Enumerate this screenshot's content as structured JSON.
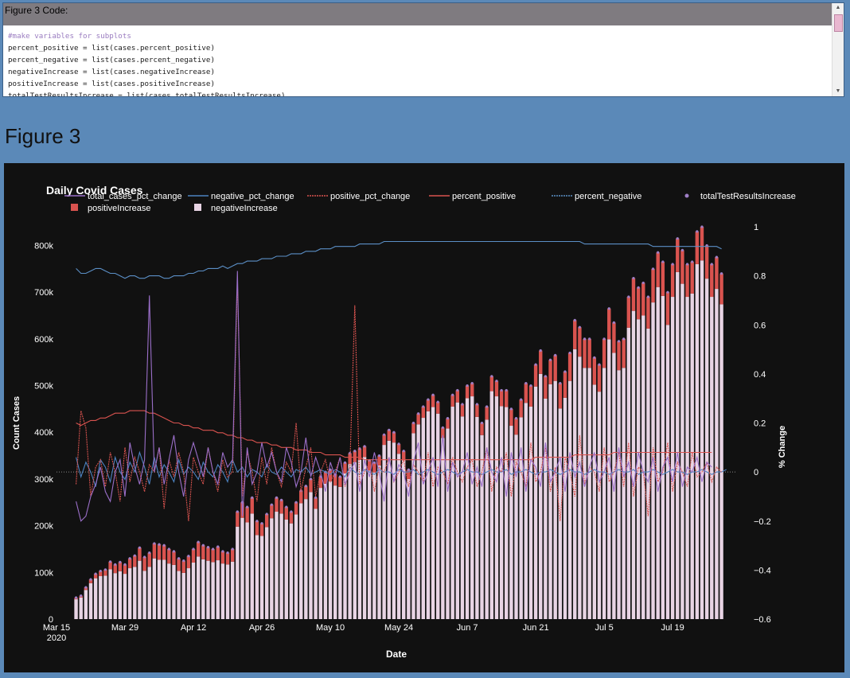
{
  "code_panel": {
    "title": "Figure 3 Code:",
    "lines": [
      {
        "text": "#make variables for subplots",
        "comment": true
      },
      {
        "text": "percent_positive = list(cases.percent_positive)",
        "comment": false
      },
      {
        "text": "percent_negative = list(cases.percent_negative)",
        "comment": false
      },
      {
        "text": "negativeIncrease = list(cases.negativeIncrease)",
        "comment": false
      },
      {
        "text": "positiveIncrease = list(cases.positiveIncrease)",
        "comment": false
      },
      {
        "text": "totalTestResultsIncrease = list(cases.totalTestResultsIncrease)",
        "comment": false
      }
    ],
    "scroll_up_icon": "▲",
    "scroll_down_icon": "▼"
  },
  "figure_title": "Figure 3",
  "colors": {
    "background": "#111111",
    "negativeIncrease": "#e8d4e4",
    "positiveIncrease": "#d9534f",
    "totalTestResultsIncrease": "#9f7fc6",
    "total_cases_pct_change": "#9b6fc9",
    "negative_pct_change": "#4c82c0",
    "positive_pct_change": "#d9534f",
    "percent_positive": "#d9534f",
    "percent_negative": "#5b8fc6"
  },
  "chart_data": {
    "type": "bar",
    "title": "Daily Covid Cases",
    "xlabel": "Date",
    "ylabel": "Count Cases",
    "y2label": "% Change",
    "ylim": [
      0,
      840000
    ],
    "y2lim": [
      -0.6,
      1.0
    ],
    "x_ticks": [
      "Mar 15\n2020",
      "Mar 29",
      "Apr 12",
      "Apr 26",
      "May 10",
      "May 24",
      "Jun 7",
      "Jun 21",
      "Jul 5",
      "Jul 19"
    ],
    "y_ticks": [
      "0",
      "100k",
      "200k",
      "300k",
      "400k",
      "500k",
      "600k",
      "700k",
      "800k"
    ],
    "y2_ticks": [
      "1",
      "0.8",
      "0.6",
      "0.4",
      "0.2",
      "0",
      "−0.2",
      "−0.4",
      "−0.6"
    ],
    "start_date": "2020-03-19",
    "legend": {
      "placement": "top",
      "entries": [
        {
          "name": "total_cases_pct_change",
          "symbol": "line"
        },
        {
          "name": "negative_pct_change",
          "symbol": "line"
        },
        {
          "name": "positive_pct_change",
          "symbol": "dotted-line"
        },
        {
          "name": "percent_positive",
          "symbol": "line"
        },
        {
          "name": "percent_negative",
          "symbol": "dotted-line"
        },
        {
          "name": "totalTestResultsIncrease",
          "symbol": "marker"
        },
        {
          "name": "positiveIncrease",
          "symbol": "bar"
        },
        {
          "name": "negativeIncrease",
          "symbol": "bar"
        }
      ]
    },
    "bars": {
      "totalTestResultsIncrease": [
        46000,
        50000,
        68000,
        85000,
        97000,
        103000,
        106000,
        123000,
        117000,
        122000,
        117000,
        130000,
        136000,
        153000,
        133000,
        142000,
        162000,
        160000,
        158000,
        150000,
        145000,
        130000,
        125000,
        135000,
        150000,
        165000,
        158000,
        154000,
        150000,
        155000,
        145000,
        142000,
        150000,
        230000,
        250000,
        240000,
        260000,
        210000,
        205000,
        225000,
        245000,
        260000,
        255000,
        240000,
        230000,
        250000,
        275000,
        285000,
        300000,
        260000,
        305000,
        315000,
        320000,
        310000,
        305000,
        335000,
        355000,
        360000,
        365000,
        370000,
        340000,
        335000,
        350000,
        395000,
        405000,
        400000,
        375000,
        360000,
        320000,
        420000,
        440000,
        455000,
        470000,
        480000,
        465000,
        410000,
        430000,
        480000,
        490000,
        460000,
        500000,
        505000,
        460000,
        420000,
        455000,
        520000,
        510000,
        490000,
        490000,
        450000,
        430000,
        470000,
        505000,
        500000,
        545000,
        575000,
        520000,
        555000,
        565000,
        505000,
        530000,
        570000,
        640000,
        625000,
        600000,
        600000,
        560000,
        545000,
        600000,
        665000,
        635000,
        595000,
        600000,
        690000,
        730000,
        710000,
        720000,
        690000,
        750000,
        785000,
        765000,
        700000,
        760000,
        815000,
        790000,
        760000,
        765000,
        830000,
        840000,
        800000,
        760000,
        775000,
        740000
      ],
      "positiveIncrease": [
        3500,
        4000,
        5500,
        8000,
        9500,
        11000,
        13000,
        16500,
        18500,
        19500,
        20000,
        21000,
        24000,
        28000,
        29500,
        30000,
        32000,
        33000,
        31000,
        31000,
        29000,
        27000,
        26000,
        26000,
        29000,
        31000,
        30000,
        29000,
        28000,
        29000,
        26000,
        25000,
        27000,
        32000,
        33000,
        33000,
        34000,
        30000,
        27000,
        28000,
        29000,
        30000,
        29000,
        27000,
        25000,
        26000,
        27000,
        28000,
        28000,
        24000,
        24000,
        25000,
        25000,
        24000,
        22000,
        23000,
        23000,
        24000,
        24000,
        23000,
        22000,
        21000,
        21000,
        22000,
        23000,
        22000,
        21000,
        20000,
        20000,
        22000,
        23000,
        24000,
        25000,
        26000,
        25000,
        22000,
        22000,
        25000,
        26000,
        26000,
        27000,
        28000,
        27000,
        26000,
        28000,
        32000,
        33000,
        34000,
        36000,
        36000,
        35000,
        38000,
        42000,
        45000,
        47000,
        50000,
        48000,
        52000,
        55000,
        54000,
        56000,
        60000,
        62000,
        63000,
        62000,
        62000,
        58000,
        58000,
        62000,
        66000,
        65000,
        62000,
        62000,
        66000,
        70000,
        68000,
        70000,
        68000,
        72000,
        74000,
        73000,
        70000,
        70000,
        72000,
        72000,
        70000,
        68000,
        70000,
        72000,
        71000,
        70000,
        68000,
        66000
      ],
      "note": "Bars are stacked: negativeIncrease base with positiveIncrease on top; totalTestResultsIncrease shown as marker at bar top."
    },
    "lines": {
      "percent_negative": [
        0.83,
        0.81,
        0.81,
        0.82,
        0.83,
        0.83,
        0.82,
        0.81,
        0.81,
        0.8,
        0.79,
        0.8,
        0.8,
        0.79,
        0.79,
        0.8,
        0.8,
        0.8,
        0.79,
        0.79,
        0.8,
        0.8,
        0.8,
        0.81,
        0.81,
        0.82,
        0.82,
        0.83,
        0.83,
        0.83,
        0.84,
        0.83,
        0.84,
        0.85,
        0.85,
        0.86,
        0.86,
        0.86,
        0.87,
        0.87,
        0.87,
        0.88,
        0.88,
        0.88,
        0.89,
        0.89,
        0.89,
        0.9,
        0.9,
        0.9,
        0.91,
        0.91,
        0.91,
        0.92,
        0.92,
        0.92,
        0.92,
        0.92,
        0.93,
        0.93,
        0.93,
        0.93,
        0.93,
        0.94,
        0.94,
        0.94,
        0.94,
        0.94,
        0.94,
        0.94,
        0.94,
        0.94,
        0.94,
        0.94,
        0.94,
        0.94,
        0.94,
        0.94,
        0.94,
        0.94,
        0.94,
        0.94,
        0.94,
        0.94,
        0.94,
        0.94,
        0.94,
        0.94,
        0.94,
        0.94,
        0.94,
        0.94,
        0.94,
        0.94,
        0.94,
        0.94,
        0.94,
        0.94,
        0.94,
        0.94,
        0.94,
        0.94,
        0.94,
        0.94,
        0.93,
        0.93,
        0.93,
        0.93,
        0.93,
        0.93,
        0.93,
        0.93,
        0.93,
        0.93,
        0.93,
        0.93,
        0.93,
        0.93,
        0.92,
        0.92,
        0.92,
        0.92,
        0.92,
        0.92,
        0.92,
        0.92,
        0.92,
        0.92,
        0.92,
        0.92,
        0.92,
        0.92,
        0.91
      ],
      "percent_positive": [
        0.2,
        0.19,
        0.2,
        0.21,
        0.21,
        0.22,
        0.22,
        0.23,
        0.24,
        0.24,
        0.24,
        0.25,
        0.25,
        0.25,
        0.25,
        0.24,
        0.24,
        0.23,
        0.22,
        0.21,
        0.2,
        0.2,
        0.19,
        0.19,
        0.18,
        0.18,
        0.17,
        0.17,
        0.17,
        0.16,
        0.16,
        0.15,
        0.15,
        0.14,
        0.14,
        0.13,
        0.13,
        0.12,
        0.12,
        0.12,
        0.11,
        0.11,
        0.1,
        0.1,
        0.1,
        0.09,
        0.09,
        0.09,
        0.08,
        0.08,
        0.08,
        0.07,
        0.07,
        0.07,
        0.07,
        0.06,
        0.06,
        0.06,
        0.06,
        0.05,
        0.05,
        0.05,
        0.05,
        0.05,
        0.05,
        0.05,
        0.05,
        0.05,
        0.05,
        0.05,
        0.05,
        0.05,
        0.05,
        0.05,
        0.05,
        0.05,
        0.05,
        0.05,
        0.05,
        0.05,
        0.05,
        0.05,
        0.05,
        0.05,
        0.05,
        0.05,
        0.05,
        0.05,
        0.05,
        0.05,
        0.05,
        0.05,
        0.05,
        0.05,
        0.06,
        0.06,
        0.06,
        0.06,
        0.06,
        0.06,
        0.06,
        0.06,
        0.07,
        0.07,
        0.07,
        0.07,
        0.07,
        0.07,
        0.07,
        0.07,
        0.08,
        0.08,
        0.08,
        0.08,
        0.08,
        0.08,
        0.08,
        0.08,
        0.08,
        0.08,
        0.08,
        0.08,
        0.08,
        0.08,
        0.08,
        0.08,
        0.08,
        0.08,
        0.08,
        0.08,
        0.08
      ],
      "total_cases_pct_change": [
        -0.12,
        -0.2,
        -0.18,
        -0.1,
        -0.05,
        0.02,
        -0.08,
        -0.12,
        0.0,
        0.05,
        -0.1,
        0.12,
        0.02,
        -0.05,
        0.05,
        0.72,
        0.0,
        0.1,
        -0.05,
        0.05,
        0.15,
        0.0,
        -0.1,
        0.05,
        0.12,
        0.05,
        -0.02,
        0.1,
        0.0,
        -0.05,
        0.08,
        0.02,
        0.05,
        0.82,
        -0.18,
        0.1,
        -0.05,
        0.0,
        0.12,
        0.02,
        0.08,
        0.0,
        -0.04,
        0.1,
        0.04,
        -0.06,
        0.0,
        0.14,
        -0.02,
        0.06,
        0.0,
        -0.08,
        0.04,
        -0.02,
        0.06,
        -0.05,
        0.0,
        0.04,
        -0.08,
        0.05,
        -0.02,
        0.08,
        0.0,
        -0.12,
        0.06,
        -0.04,
        0.03,
        0.0,
        -0.1,
        0.04,
        0.12,
        -0.05,
        0.0,
        0.06,
        -0.06,
        0.15,
        -0.08,
        0.04,
        -0.02,
        0.0,
        0.08,
        -0.05,
        0.02,
        -0.06,
        0.1,
        0.0,
        -0.04,
        0.06,
        -0.1,
        0.08,
        -0.02,
        0.1,
        -0.08,
        0.05,
        0.02,
        -0.06,
        0.12,
        -0.04,
        0.0,
        0.06,
        -0.08,
        0.08,
        -0.02,
        0.04,
        -0.06,
        0.02,
        0.08,
        -0.04,
        0.0,
        0.06,
        -0.08,
        0.1,
        -0.02,
        0.04,
        -0.06,
        0.08,
        0.0,
        -0.04,
        0.06,
        -0.08,
        0.02,
        0.06,
        -0.04,
        0.08,
        -0.06,
        0.02,
        0.0,
        0.06,
        -0.04,
        0.04,
        0.02
      ],
      "negative_pct_change": [
        0.06,
        -0.02,
        0.04,
        0.0,
        -0.06,
        0.05,
        0.02,
        -0.04,
        0.06,
        0.0,
        -0.03,
        0.04,
        0.0,
        0.08,
        0.02,
        -0.05,
        0.06,
        -0.02,
        0.03,
        0.0,
        -0.04,
        0.05,
        -0.01,
        0.02,
        0.0,
        -0.03,
        0.04,
        0.0,
        -0.02,
        0.03,
        0.0,
        -0.04,
        0.05,
        0.0,
        0.02,
        -0.02,
        0.01,
        0.0,
        -0.02,
        0.03,
        0.0,
        -0.01,
        0.02,
        0.0,
        -0.02,
        0.01,
        0.0,
        0.02,
        -0.01,
        0.0,
        0.01,
        0.0,
        -0.01,
        0.01,
        0.0,
        -0.02,
        0.02,
        0.0,
        -0.01,
        0.01,
        0.0,
        -0.01,
        0.01,
        0.0,
        0.0,
        -0.01,
        0.01,
        0.0,
        0.0,
        0.01,
        -0.01,
        0.0,
        0.01,
        0.0,
        -0.01,
        0.0,
        0.01,
        0.0,
        -0.01,
        0.0,
        0.01,
        0.0,
        0.0,
        -0.01,
        0.0,
        0.01,
        0.0,
        0.0,
        0.01,
        -0.01,
        0.0,
        0.0,
        0.01,
        0.0,
        -0.01,
        0.0,
        0.0,
        0.01,
        0.0,
        -0.01,
        0.0,
        0.01,
        0.0,
        0.0,
        -0.01,
        0.0,
        0.01,
        0.0,
        0.0,
        -0.01,
        0.0,
        0.01,
        0.0,
        0.0,
        0.01,
        -0.01,
        0.0,
        0.0,
        0.01,
        0.0,
        -0.01,
        0.0,
        0.01,
        0.0,
        0.0,
        -0.01,
        0.0,
        0.0,
        0.01,
        0.0,
        -0.01,
        0.0,
        0.0,
        0.01
      ],
      "positive_pct_change": [
        -0.05,
        0.25,
        0.18,
        -0.1,
        0.02,
        0.05,
        -0.06,
        0.08,
        0.0,
        -0.12,
        0.1,
        -0.04,
        0.06,
        0.0,
        -0.08,
        0.03,
        0.0,
        0.1,
        -0.15,
        0.05,
        -0.02,
        0.08,
        0.0,
        -0.2,
        0.06,
        0.0,
        -0.05,
        0.1,
        0.0,
        -0.08,
        0.05,
        -0.02,
        0.0,
        0.78,
        -0.1,
        0.08,
        0.0,
        -0.12,
        0.06,
        -0.05,
        0.1,
        0.0,
        -0.06,
        0.04,
        0.0,
        0.2,
        -0.08,
        0.02,
        0.1,
        -0.1,
        0.0,
        0.05,
        -0.04,
        0.0,
        0.06,
        -0.06,
        0.02,
        0.68,
        -0.05,
        0.0,
        0.04,
        -0.08,
        0.02,
        0.0,
        0.06,
        -0.04,
        0.0,
        0.05,
        -0.06,
        0.03,
        0.0,
        -0.04,
        0.08,
        -0.06,
        0.02,
        0.0,
        -0.05,
        0.06,
        0.0,
        -0.04,
        0.02,
        0.05,
        -0.06,
        0.0,
        0.1,
        -0.08,
        0.02,
        0.0,
        0.08,
        -0.1,
        0.04,
        0.0,
        -0.06,
        0.12,
        -0.04,
        0.0,
        0.1,
        -0.08,
        0.02,
        -0.2,
        0.06,
        0.0,
        -0.1,
        0.15,
        -0.05,
        0.02,
        0.0,
        -0.08,
        0.1,
        -0.04,
        0.0,
        0.08,
        -0.06,
        0.12,
        -0.1,
        0.02,
        0.0,
        -0.18,
        0.1,
        -0.04,
        0.0,
        0.12,
        -0.08,
        0.04,
        0.0,
        -0.06,
        0.08,
        -0.02,
        0.0,
        0.04,
        -0.04,
        0.02,
        0.0
      ]
    }
  }
}
